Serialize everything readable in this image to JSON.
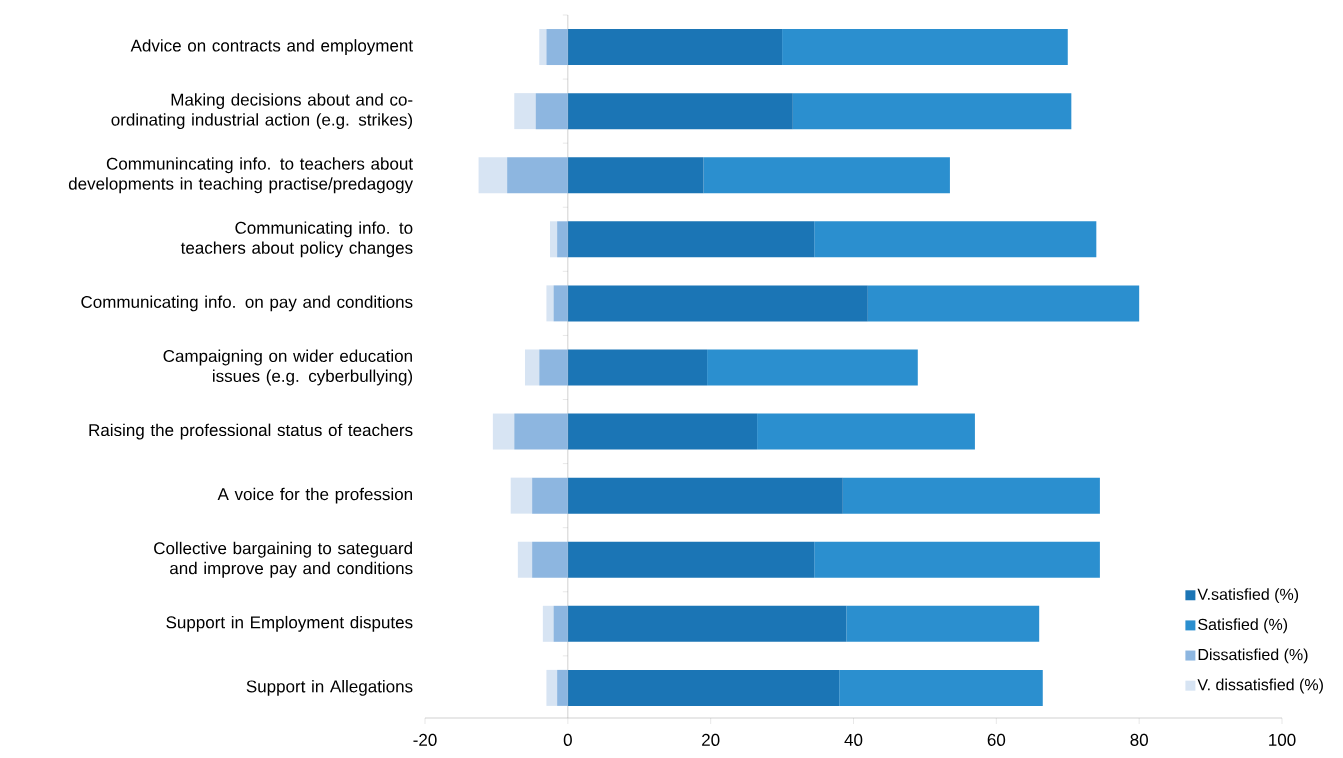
{
  "chart_data": {
    "type": "bar",
    "orientation": "horizontal",
    "stacked": true,
    "categories": [
      "Advice on contracts and employment",
      "Making decisions about and co-ordinating industrial action (e.g. strikes)",
      "Communincating info. to teachers about developments in teaching practise/predagogy",
      "Communicating info. to teachers about policy changes",
      "Communicating info. on pay and conditions",
      "Campaigning on wider education issues (e.g. cyberbullying)",
      "Raising the professional status of teachers",
      "A voice for the profession",
      "Collective bargaining to sateguard and improve pay and conditions",
      "Support in Employment disputes",
      "Support in Allegations"
    ],
    "series": [
      {
        "name": "V.satisfied (%)",
        "color": "#1b75b5",
        "values": [
          30,
          31.5,
          19,
          34.5,
          42,
          19.5,
          26.5,
          38.5,
          34.5,
          39,
          38
        ]
      },
      {
        "name": "Satisfied (%)",
        "color": "#2b8fcf",
        "values": [
          40,
          39,
          34.5,
          39.5,
          38,
          29.5,
          30.5,
          36,
          40,
          27,
          28.5
        ]
      },
      {
        "name": "Dissatisfied (%)",
        "color": "#8db6e0",
        "values": [
          -3,
          -4.5,
          -8.5,
          -1.5,
          -2,
          -4,
          -7.5,
          -5,
          -5,
          -2,
          -1.5
        ]
      },
      {
        "name": "V. dissatisfied (%)",
        "color": "#d7e4f3",
        "values": [
          -1,
          -3,
          -4,
          -1,
          -1,
          -2,
          -3,
          -3,
          -2,
          -1.5,
          -1.5
        ]
      }
    ],
    "xlim": [
      -20,
      100
    ],
    "xticks": [
      -20,
      0,
      20,
      40,
      60,
      80,
      100
    ],
    "legend": "bottom right"
  }
}
